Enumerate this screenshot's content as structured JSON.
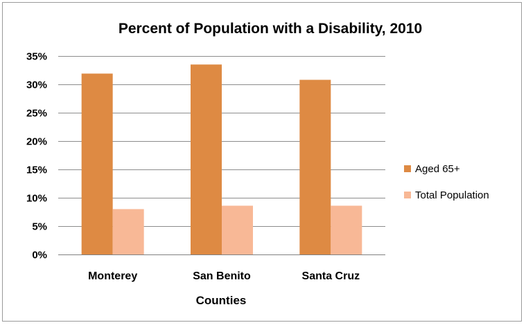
{
  "chart_data": {
    "type": "bar",
    "title": "Percent of Population with a Disability, 2010",
    "xlabel": "Counties",
    "ylabel": "",
    "categories": [
      "Monterey",
      "San Benito",
      "Santa Cruz"
    ],
    "series": [
      {
        "name": "Aged 65+",
        "values": [
          0.319,
          0.335,
          0.308
        ],
        "color": "#DE8A43"
      },
      {
        "name": "Total Population",
        "values": [
          0.08,
          0.086,
          0.086
        ],
        "color": "#F8B896"
      }
    ],
    "ylim": [
      0,
      0.35
    ],
    "yticks": [
      {
        "value": 0,
        "label": "0%"
      },
      {
        "value": 0.05,
        "label": "5%"
      },
      {
        "value": 0.1,
        "label": "10%"
      },
      {
        "value": 0.15,
        "label": "15%"
      },
      {
        "value": 0.2,
        "label": "20%"
      },
      {
        "value": 0.25,
        "label": "25%"
      },
      {
        "value": 0.3,
        "label": "30%"
      },
      {
        "value": 0.35,
        "label": "35%"
      }
    ],
    "grid": true,
    "legend": "right",
    "gridColor": "#8C8C8C"
  }
}
